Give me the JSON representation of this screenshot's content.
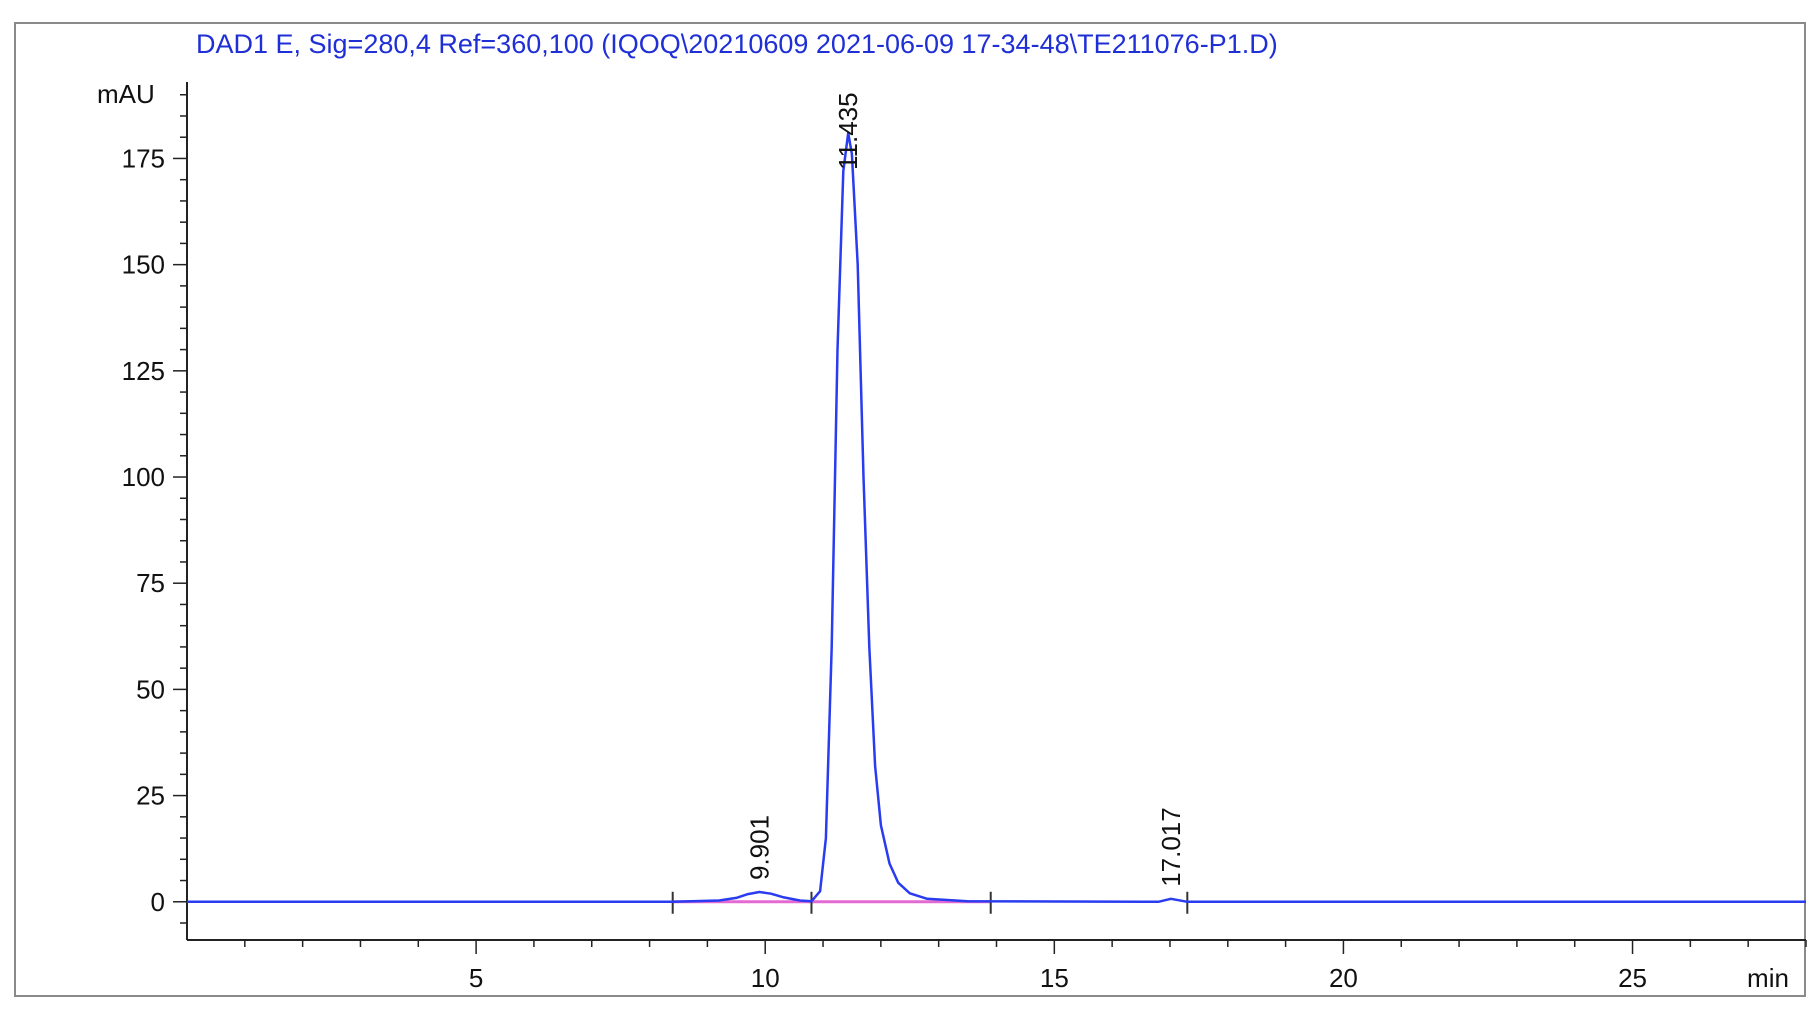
{
  "chart_data": {
    "type": "line",
    "title": "DAD1 E, Sig=280,4 Ref=360,100 (IQOQ\\20210609 2021-06-09 17-34-48\\TE211076-P1.D)",
    "ylabel": "mAU",
    "xlabel": "min",
    "xlim": [
      0,
      28
    ],
    "ylim": [
      -9,
      193
    ],
    "x_ticks": [
      5,
      10,
      15,
      20,
      25
    ],
    "x_tick_labels": [
      "5",
      "10",
      "15",
      "20",
      "25"
    ],
    "y_ticks": [
      0,
      25,
      50,
      75,
      100,
      125,
      150,
      175
    ],
    "y_tick_labels": [
      "0",
      "25",
      "50",
      "75",
      "100",
      "125",
      "150",
      "175"
    ],
    "grid": false,
    "series": [
      {
        "color": "#2a3cf0",
        "x": [
          0,
          5,
          8.4,
          9.2,
          9.5,
          9.7,
          9.9,
          10.1,
          10.3,
          10.6,
          10.8,
          10.95,
          11.05,
          11.15,
          11.25,
          11.35,
          11.435,
          11.5,
          11.6,
          11.7,
          11.8,
          11.9,
          12.0,
          12.15,
          12.3,
          12.5,
          12.8,
          13.5,
          16.8,
          17.017,
          17.3,
          20,
          28
        ],
        "y": [
          0,
          0,
          0,
          0.3,
          0.9,
          1.8,
          2.3,
          1.9,
          1.1,
          0.3,
          0.1,
          2.5,
          15,
          60,
          130,
          172,
          181,
          176,
          150,
          100,
          60,
          32,
          18,
          9,
          4.5,
          2,
          0.7,
          0.1,
          0,
          0.7,
          0,
          0,
          0
        ]
      }
    ],
    "baseline": {
      "color": "#e36ad3",
      "x": [
        8.4,
        13.9
      ],
      "y": [
        0,
        0
      ]
    },
    "peak_labels": [
      {
        "text": "9.901",
        "x": 9.901,
        "y": 2.3
      },
      {
        "text": "11.435",
        "x": 11.435,
        "y": 181
      },
      {
        "text": "17.017",
        "x": 17.017,
        "y": 0.7
      }
    ],
    "integration_markers": [
      8.4,
      10.8,
      13.9,
      17.3
    ],
    "colors": {
      "signal": "#2a3cf0",
      "baseline": "#e36ad3",
      "title": "#1f2fd6"
    }
  }
}
